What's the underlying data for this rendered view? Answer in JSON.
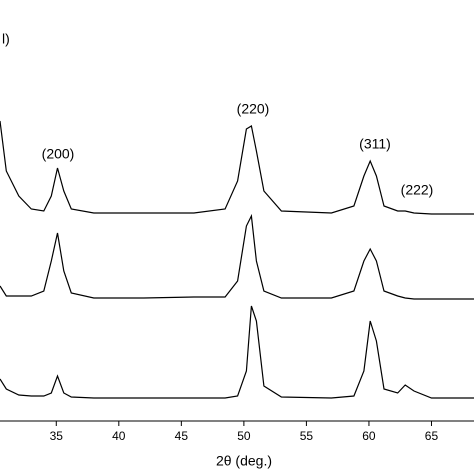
{
  "chart_data": {
    "type": "line",
    "y_label": "l)",
    "x_label": "2θ (deg.)",
    "annotations": [
      "(200)",
      "(220)",
      "(311)",
      "(222)"
    ],
    "x": [
      30.5,
      31,
      32,
      33,
      34,
      34.6,
      35.1,
      35.6,
      36.2,
      38,
      42,
      46,
      48.5,
      49.5,
      50.2,
      50.6,
      51,
      51.6,
      53,
      57,
      58.8,
      59.6,
      60.1,
      60.6,
      61.2,
      62.3,
      62.9,
      63.6,
      65,
      68.4
    ],
    "series": [
      {
        "color": "#000000",
        "values": [
          300,
          250,
          225,
          212,
          210,
          225,
          253,
          230,
          212,
          208,
          208,
          208,
          212,
          240,
          292,
          295,
          270,
          230,
          210,
          208,
          215,
          245,
          260,
          245,
          215,
          210,
          210,
          208,
          207,
          207
        ]
      },
      {
        "color": "#000000",
        "values": [
          135,
          125,
          125,
          125,
          130,
          160,
          188,
          150,
          128,
          123,
          123,
          124,
          124,
          140,
          195,
          205,
          160,
          130,
          123,
          123,
          130,
          160,
          172,
          160,
          130,
          125,
          123,
          122,
          122,
          122
        ]
      },
      {
        "color": "#000000",
        "values": [
          42,
          32,
          26,
          25,
          25,
          28,
          45,
          28,
          24,
          23,
          23,
          23,
          23,
          25,
          50,
          115,
          100,
          35,
          24,
          23,
          25,
          50,
          100,
          80,
          32,
          28,
          36,
          30,
          23,
          23
        ]
      }
    ],
    "xlim": [
      30.5,
      68.4
    ],
    "ylim": [
      0,
      421
    ],
    "xticks": [
      35,
      40,
      45,
      50,
      55,
      60,
      65
    ]
  }
}
